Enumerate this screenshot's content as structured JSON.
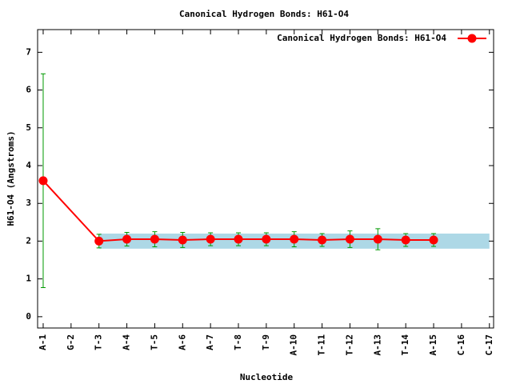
{
  "chart_data": {
    "type": "line",
    "title": "Canonical Hydrogen Bonds: H61-O4",
    "xlabel": "Nucleotide",
    "ylabel": "H61-O4 (Angstroms)",
    "x": [
      1,
      3,
      4,
      5,
      6,
      7,
      8,
      9,
      10,
      11,
      12,
      13,
      14,
      15
    ],
    "series": [
      {
        "name": "Canonical Hydrogen Bonds: H61-O4",
        "color": "#ff0000",
        "error_color": "#009900",
        "values": [
          3.6,
          2.0,
          2.05,
          2.05,
          2.03,
          2.05,
          2.05,
          2.05,
          2.05,
          2.03,
          2.05,
          2.05,
          2.03,
          2.03
        ],
        "errors": [
          2.83,
          0.18,
          0.18,
          0.2,
          0.2,
          0.17,
          0.17,
          0.17,
          0.2,
          0.17,
          0.22,
          0.28,
          0.17,
          0.17
        ]
      }
    ],
    "band": {
      "x": [
        3,
        17
      ],
      "y": [
        1.8,
        2.2
      ],
      "color": "#add8e6"
    },
    "xlim": [
      0.8,
      17.15
    ],
    "ylim": [
      -0.3,
      7.6
    ],
    "xticks": [
      {
        "value": 1,
        "label": "A-1"
      },
      {
        "value": 2,
        "label": "G-2"
      },
      {
        "value": 3,
        "label": "T-3"
      },
      {
        "value": 4,
        "label": "A-4"
      },
      {
        "value": 5,
        "label": "T-5"
      },
      {
        "value": 6,
        "label": "A-6"
      },
      {
        "value": 7,
        "label": "A-7"
      },
      {
        "value": 8,
        "label": "T-8"
      },
      {
        "value": 9,
        "label": "T-9"
      },
      {
        "value": 10,
        "label": "A-10"
      },
      {
        "value": 11,
        "label": "T-11"
      },
      {
        "value": 12,
        "label": "T-12"
      },
      {
        "value": 13,
        "label": "A-13"
      },
      {
        "value": 14,
        "label": "T-14"
      },
      {
        "value": 15,
        "label": "A-15"
      },
      {
        "value": 16,
        "label": "C-16"
      },
      {
        "value": 17,
        "label": "C-17"
      }
    ],
    "yticks": [
      0,
      1,
      2,
      3,
      4,
      5,
      6,
      7
    ],
    "legend": "top-right"
  }
}
